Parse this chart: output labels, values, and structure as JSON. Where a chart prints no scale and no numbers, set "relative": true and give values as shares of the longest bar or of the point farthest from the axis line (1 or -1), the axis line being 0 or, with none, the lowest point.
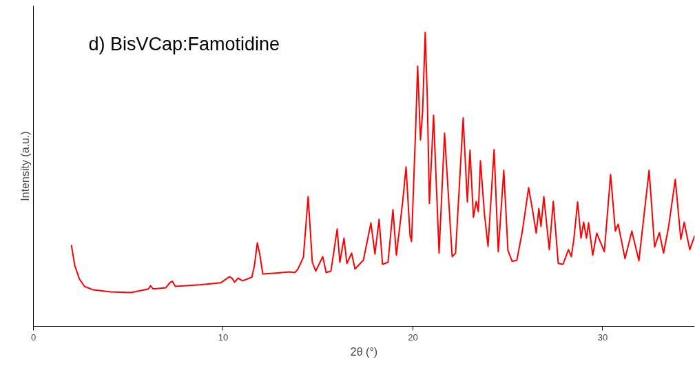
{
  "chart_data": {
    "type": "line",
    "title": "d) BisVCap:Famotidine",
    "xlabel": "2θ (°)",
    "ylabel": "Intensity (a.u.)",
    "relative": true,
    "xlim": [
      0,
      34.85
    ],
    "xticks": [
      0,
      10,
      20,
      30
    ],
    "line_style": "solid",
    "series": [
      {
        "color": "#ff0000",
        "x": [
          2.0,
          2.18,
          2.43,
          2.69,
          3.16,
          4.07,
          5.15,
          6.06,
          6.17,
          6.32,
          6.97,
          7.22,
          7.33,
          7.48,
          8.78,
          9.87,
          10.34,
          10.49,
          10.6,
          10.78,
          11.03,
          11.51,
          11.65,
          11.8,
          11.94,
          12.09,
          12.78,
          13.5,
          13.79,
          13.94,
          14.23,
          14.48,
          14.7,
          14.88,
          15.25,
          15.43,
          15.68,
          16.01,
          16.15,
          16.37,
          16.52,
          16.77,
          16.95,
          17.39,
          17.79,
          18.0,
          18.22,
          18.4,
          18.69,
          18.95,
          19.13,
          19.46,
          19.64,
          19.85,
          19.93,
          20.15,
          20.25,
          20.4,
          20.51,
          20.65,
          20.76,
          20.87,
          21.09,
          21.38,
          21.67,
          22.07,
          22.25,
          22.65,
          22.87,
          23.01,
          23.19,
          23.34,
          23.45,
          23.56,
          23.77,
          23.96,
          24.28,
          24.5,
          24.79,
          25.01,
          25.23,
          25.48,
          25.77,
          26.1,
          26.32,
          26.5,
          26.64,
          26.75,
          26.9,
          27.19,
          27.4,
          27.66,
          27.91,
          28.2,
          28.35,
          28.49,
          28.68,
          28.86,
          29.0,
          29.15,
          29.26,
          29.48,
          29.69,
          30.09,
          30.42,
          30.67,
          30.82,
          31.18,
          31.54,
          31.91,
          32.45,
          32.74,
          32.99,
          33.21,
          33.47,
          33.83,
          34.12,
          34.3,
          34.59,
          34.85
        ],
        "values": [
          0.277,
          0.207,
          0.16,
          0.136,
          0.124,
          0.117,
          0.115,
          0.127,
          0.138,
          0.127,
          0.131,
          0.15,
          0.153,
          0.136,
          0.141,
          0.148,
          0.169,
          0.162,
          0.15,
          0.164,
          0.155,
          0.167,
          0.207,
          0.284,
          0.242,
          0.178,
          0.181,
          0.185,
          0.183,
          0.195,
          0.235,
          0.441,
          0.218,
          0.188,
          0.237,
          0.183,
          0.188,
          0.331,
          0.218,
          0.3,
          0.214,
          0.249,
          0.195,
          0.225,
          0.352,
          0.246,
          0.364,
          0.211,
          0.218,
          0.397,
          0.242,
          0.423,
          0.542,
          0.308,
          0.289,
          0.681,
          0.885,
          0.634,
          0.728,
          1.0,
          0.775,
          0.418,
          0.718,
          0.249,
          0.657,
          0.237,
          0.249,
          0.709,
          0.423,
          0.599,
          0.371,
          0.425,
          0.39,
          0.563,
          0.383,
          0.272,
          0.601,
          0.254,
          0.531,
          0.258,
          0.221,
          0.225,
          0.324,
          0.472,
          0.39,
          0.317,
          0.401,
          0.34,
          0.441,
          0.261,
          0.425,
          0.214,
          0.211,
          0.261,
          0.237,
          0.3,
          0.423,
          0.3,
          0.354,
          0.3,
          0.352,
          0.242,
          0.317,
          0.254,
          0.516,
          0.324,
          0.347,
          0.23,
          0.324,
          0.223,
          0.531,
          0.27,
          0.319,
          0.249,
          0.336,
          0.5,
          0.296,
          0.354,
          0.261,
          0.308
        ]
      }
    ]
  }
}
